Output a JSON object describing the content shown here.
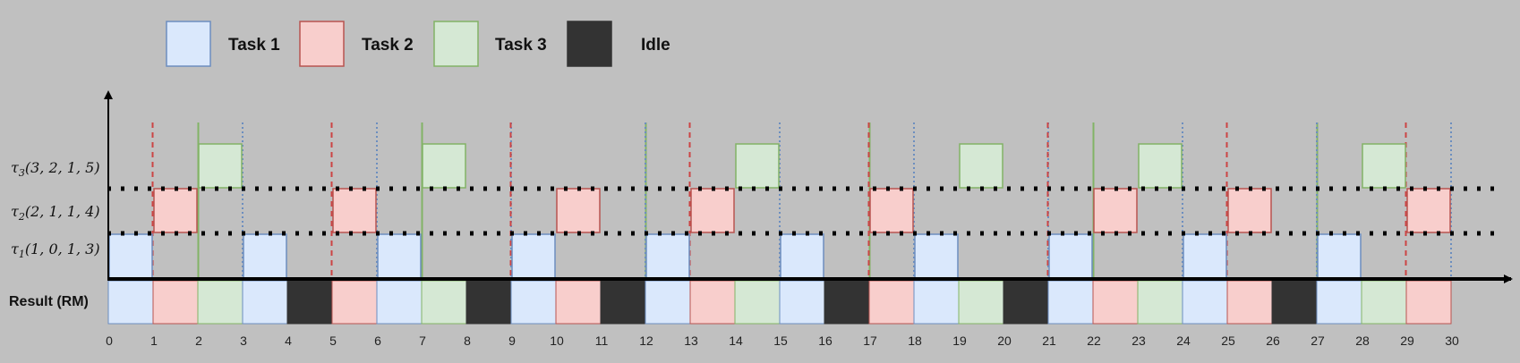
{
  "legend": [
    {
      "key": "task1",
      "label": "Task 1"
    },
    {
      "key": "task2",
      "label": "Task 2"
    },
    {
      "key": "task3",
      "label": "Task 3"
    },
    {
      "key": "idle",
      "label": "Idle"
    }
  ],
  "colors": {
    "task1_fill": "#dae8fc",
    "task1_stroke": "#6c8ebf",
    "task2_fill": "#f8cecc",
    "task2_stroke": "#b85450",
    "task3_fill": "#d5e8d4",
    "task3_stroke": "#82b366",
    "idle_fill": "#333333",
    "tau1_line": "#6c8ebf",
    "tau2_line": "#cc4444",
    "tau3_line": "#82b366"
  },
  "tasks": [
    {
      "key": "task3",
      "label_main": "τ",
      "label_sub": "3",
      "label_params": "(3, 2, 1, 5)",
      "slots": [
        2,
        7,
        14,
        19,
        23,
        28
      ]
    },
    {
      "key": "task2",
      "label_main": "τ",
      "label_sub": "2",
      "label_params": "(2, 1, 1, 4)",
      "slots": [
        1,
        5,
        10,
        13,
        17,
        22,
        25,
        29
      ]
    },
    {
      "key": "task1",
      "label_main": "τ",
      "label_sub": "1",
      "label_params": "(1, 0, 1, 3)",
      "slots": [
        0,
        3,
        6,
        9,
        12,
        15,
        18,
        21,
        24,
        27
      ]
    }
  ],
  "release_markers": {
    "task1": [
      0,
      3,
      6,
      9,
      12,
      15,
      18,
      21,
      24,
      27,
      30
    ],
    "task2": [
      1,
      5,
      9,
      13,
      17,
      21,
      25,
      29
    ],
    "task3": [
      2,
      7,
      12,
      17,
      22,
      27
    ]
  },
  "result": {
    "label": "Result (RM)",
    "sequence": [
      "task1",
      "task2",
      "task3",
      "task1",
      "idle",
      "task2",
      "task1",
      "task3",
      "idle",
      "task1",
      "task2",
      "idle",
      "task1",
      "task2",
      "task3",
      "task1",
      "idle",
      "task2",
      "task1",
      "task3",
      "idle",
      "task1",
      "task2",
      "task3",
      "task1",
      "task2",
      "idle",
      "task1",
      "task3",
      "task2"
    ]
  },
  "axis": {
    "ticks": [
      0,
      1,
      2,
      3,
      4,
      5,
      6,
      7,
      8,
      9,
      10,
      11,
      12,
      13,
      14,
      15,
      16,
      17,
      18,
      19,
      20,
      21,
      22,
      23,
      24,
      25,
      26,
      27,
      28,
      29,
      30
    ]
  }
}
